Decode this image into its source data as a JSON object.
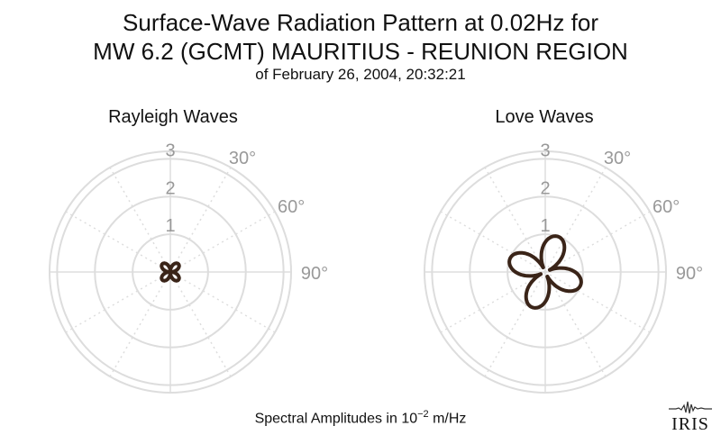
{
  "title_line1": "Surface-Wave Radiation Pattern at 0.02Hz for",
  "title_line2": "MW 6.2 (GCMT) MAURITIUS - REUNION REGION",
  "subtitle": "of February 26, 2004, 20:32:21",
  "footer_prefix": "Spectral Amplitudes in 10",
  "footer_exponent": "−2",
  "footer_suffix": " m/Hz",
  "logo_text": "IRIS",
  "colors": {
    "pattern": "#3a2418",
    "grid": "#dddddd",
    "label": "#999999"
  },
  "chart_data": [
    {
      "type": "polar",
      "title": "Rayleigh Waves",
      "r_ticks": [
        1,
        2,
        3
      ],
      "r_tick_labels": [
        "1",
        "2",
        "3"
      ],
      "theta_tick_labels": [
        "30°",
        "60°",
        "90°"
      ],
      "angle_tick_labels": [
        30,
        60,
        90
      ],
      "rmax": 3.2,
      "spoke_step_deg": 30,
      "pattern": {
        "kind": "four-lobe",
        "peak": 0.3,
        "lobe_azimuth_deg": 45,
        "min_ratio": 0.05
      }
    },
    {
      "type": "polar",
      "title": "Love Waves",
      "r_ticks": [
        1,
        2,
        3
      ],
      "r_tick_labels": [
        "1",
        "2",
        "3"
      ],
      "theta_tick_labels": [
        "30°",
        "60°",
        "90°"
      ],
      "angle_tick_labels": [
        30,
        60,
        90
      ],
      "rmax": 3.2,
      "spoke_step_deg": 30,
      "pattern": {
        "kind": "four-lobe",
        "peak": 1.0,
        "lobe_azimuth_deg": 20,
        "min_ratio": 0.1
      }
    }
  ]
}
